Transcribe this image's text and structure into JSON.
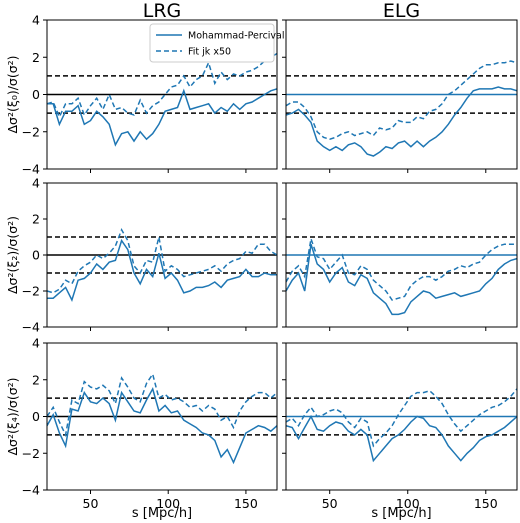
{
  "colors": {
    "series": "#1f77b4",
    "ref": "#000000"
  },
  "legend": {
    "entries": [
      "Mohammad-Percival",
      "Fit jk x50"
    ],
    "placement": "top-right"
  },
  "chart_data": [
    {
      "type": "line",
      "panel": "LRG-xi0",
      "title": "LRG",
      "xlabel": "",
      "ylabel": "Δσ²(ξ₀)/σ(σ²)",
      "xlim": [
        22,
        170
      ],
      "ylim": [
        -4,
        4
      ],
      "yticks": [
        -4,
        -2,
        0,
        2,
        4
      ],
      "xticks": [
        50,
        100,
        150
      ],
      "hlines": [
        {
          "y": 0,
          "style": "solid",
          "color": "#000000"
        },
        {
          "y": 1,
          "style": "dashed"
        },
        {
          "y": -1,
          "style": "dashed"
        }
      ],
      "x": [
        22,
        26,
        30,
        34,
        38,
        42,
        46,
        50,
        54,
        58,
        62,
        66,
        70,
        74,
        78,
        82,
        86,
        90,
        94,
        98,
        102,
        106,
        110,
        114,
        118,
        122,
        126,
        130,
        134,
        138,
        142,
        146,
        150,
        154,
        158,
        162,
        166,
        170
      ],
      "series": [
        {
          "name": "Mohammad-Percival",
          "style": "solid",
          "values": [
            -0.5,
            -0.5,
            -1.6,
            -0.9,
            -0.9,
            -0.6,
            -1.6,
            -1.4,
            -0.9,
            -1.2,
            -1.6,
            -2.7,
            -2.1,
            -2.0,
            -2.5,
            -2.0,
            -2.4,
            -2.1,
            -1.6,
            -0.9,
            -0.8,
            -0.7,
            0.2,
            -0.8,
            -0.7,
            -0.6,
            -0.5,
            -1.0,
            -0.7,
            -0.9,
            -0.5,
            -0.8,
            -0.5,
            -0.4,
            -0.2,
            0.0,
            0.2,
            0.3
          ]
        },
        {
          "name": "Fit jk x50",
          "style": "dashed",
          "values": [
            -0.5,
            -0.4,
            -1.2,
            -0.5,
            -0.5,
            -0.2,
            -1.1,
            -0.6,
            -0.2,
            -0.8,
            0.0,
            -0.8,
            -0.7,
            -1.0,
            -1.1,
            -0.3,
            -1.0,
            -0.6,
            -0.4,
            0.0,
            0.4,
            0.5,
            1.0,
            0.4,
            0.8,
            1.0,
            1.7,
            0.6,
            1.2,
            0.8,
            1.1,
            1.0,
            1.2,
            1.3,
            1.5,
            1.8,
            2.0,
            2.2
          ]
        }
      ]
    },
    {
      "type": "line",
      "panel": "ELG-xi0",
      "title": "ELG",
      "xlabel": "",
      "ylabel": "",
      "xlim": [
        22,
        170
      ],
      "ylim": [
        -4,
        4
      ],
      "yticks": [
        -4,
        -2,
        0,
        2,
        4
      ],
      "xticks": [
        50,
        100,
        150
      ],
      "hlines": [
        {
          "y": 0,
          "style": "solid",
          "color": "#1f77b4"
        },
        {
          "y": 1,
          "style": "dashed"
        },
        {
          "y": -1,
          "style": "dashed"
        }
      ],
      "x": [
        22,
        26,
        30,
        34,
        38,
        42,
        46,
        50,
        54,
        58,
        62,
        66,
        70,
        74,
        78,
        82,
        86,
        90,
        94,
        98,
        102,
        106,
        110,
        114,
        118,
        122,
        126,
        130,
        134,
        138,
        142,
        146,
        150,
        154,
        158,
        162,
        166,
        170
      ],
      "series": [
        {
          "name": "Mohammad-Percival",
          "style": "solid",
          "values": [
            -1.1,
            -1.0,
            -0.8,
            -1.1,
            -1.5,
            -2.5,
            -2.8,
            -3.0,
            -2.8,
            -3.0,
            -2.7,
            -2.6,
            -2.8,
            -3.2,
            -3.3,
            -3.1,
            -2.8,
            -2.9,
            -2.6,
            -2.5,
            -2.8,
            -2.5,
            -2.8,
            -2.5,
            -2.3,
            -2.0,
            -1.6,
            -1.1,
            -0.7,
            -0.2,
            0.2,
            0.3,
            0.3,
            0.3,
            0.4,
            0.3,
            0.3,
            0.2
          ]
        },
        {
          "name": "Fit jk x50",
          "style": "dashed",
          "values": [
            -0.6,
            -0.4,
            -0.4,
            -0.7,
            -1.2,
            -2.0,
            -2.3,
            -2.4,
            -2.3,
            -2.1,
            -2.0,
            -2.2,
            -2.1,
            -2.0,
            -2.2,
            -1.8,
            -1.9,
            -1.8,
            -1.4,
            -1.5,
            -1.5,
            -1.2,
            -1.3,
            -0.9,
            -0.8,
            -0.5,
            0.0,
            0.2,
            0.5,
            0.8,
            1.1,
            1.4,
            1.6,
            1.6,
            1.7,
            1.7,
            1.8,
            1.7
          ]
        }
      ]
    },
    {
      "type": "line",
      "panel": "LRG-xi2",
      "title": "",
      "xlabel": "",
      "ylabel": "Δσ²(ξ₂)/σ(σ²)",
      "xlim": [
        22,
        170
      ],
      "ylim": [
        -4,
        4
      ],
      "yticks": [
        -4,
        -2,
        0,
        2,
        4
      ],
      "xticks": [
        50,
        100,
        150
      ],
      "hlines": [
        {
          "y": 0,
          "style": "solid",
          "color": "#000000"
        },
        {
          "y": 1,
          "style": "dashed"
        },
        {
          "y": -1,
          "style": "dashed"
        }
      ],
      "x": [
        22,
        26,
        30,
        34,
        38,
        42,
        46,
        50,
        54,
        58,
        62,
        66,
        70,
        74,
        78,
        82,
        86,
        90,
        94,
        98,
        102,
        106,
        110,
        114,
        118,
        122,
        126,
        130,
        134,
        138,
        142,
        146,
        150,
        154,
        158,
        162,
        166,
        170
      ],
      "series": [
        {
          "name": "Mohammad-Percival",
          "style": "solid",
          "values": [
            -2.4,
            -2.4,
            -2.1,
            -1.8,
            -2.5,
            -1.4,
            -1.3,
            -1.0,
            -0.5,
            -0.8,
            -0.4,
            -0.3,
            0.8,
            0.3,
            -1.0,
            -1.6,
            -0.8,
            -1.2,
            0.1,
            -1.3,
            -1.0,
            -1.4,
            -2.1,
            -2.0,
            -1.8,
            -1.8,
            -1.7,
            -1.5,
            -1.8,
            -1.4,
            -1.3,
            -1.2,
            -0.8,
            -1.2,
            -1.2,
            -1.0,
            -1.1,
            -1.1
          ]
        },
        {
          "name": "Fit jk x50",
          "style": "dashed",
          "values": [
            -2.0,
            -2.1,
            -1.9,
            -1.4,
            -1.6,
            -0.9,
            -0.6,
            -0.4,
            0.0,
            -0.2,
            0.1,
            0.5,
            1.4,
            0.8,
            -0.6,
            -1.0,
            -0.3,
            -0.4,
            1.0,
            -0.9,
            -0.6,
            -0.8,
            -1.2,
            -1.1,
            -1.0,
            -0.9,
            -0.8,
            -0.6,
            -0.9,
            -0.5,
            -0.3,
            -0.2,
            0.2,
            0.1,
            0.6,
            0.6,
            0.2,
            0.0
          ]
        }
      ]
    },
    {
      "type": "line",
      "panel": "ELG-xi2",
      "title": "",
      "xlabel": "",
      "ylabel": "",
      "xlim": [
        22,
        170
      ],
      "ylim": [
        -4,
        4
      ],
      "yticks": [
        -4,
        -2,
        0,
        2,
        4
      ],
      "xticks": [
        50,
        100,
        150
      ],
      "hlines": [
        {
          "y": 0,
          "style": "solid",
          "color": "#1f77b4"
        },
        {
          "y": 1,
          "style": "dashed"
        },
        {
          "y": -1,
          "style": "dashed"
        }
      ],
      "x": [
        22,
        26,
        30,
        34,
        38,
        42,
        46,
        50,
        54,
        58,
        62,
        66,
        70,
        74,
        78,
        82,
        86,
        90,
        94,
        98,
        102,
        106,
        110,
        114,
        118,
        122,
        126,
        130,
        134,
        138,
        142,
        146,
        150,
        154,
        158,
        162,
        166,
        170
      ],
      "series": [
        {
          "name": "Mohammad-Percival",
          "style": "solid",
          "values": [
            -2.0,
            -1.4,
            -1.0,
            -2.0,
            0.6,
            -0.5,
            -0.8,
            -1.5,
            -1.0,
            -0.7,
            -1.5,
            -1.7,
            -1.1,
            -1.3,
            -2.1,
            -2.4,
            -2.7,
            -3.3,
            -3.3,
            -3.2,
            -2.6,
            -2.3,
            -2.0,
            -2.1,
            -2.4,
            -2.3,
            -2.2,
            -2.1,
            -2.3,
            -2.2,
            -2.1,
            -2.0,
            -1.6,
            -1.3,
            -0.8,
            -0.5,
            -0.3,
            -0.2
          ]
        },
        {
          "name": "Fit jk x50",
          "style": "dashed",
          "values": [
            -1.5,
            -0.9,
            -0.6,
            -1.2,
            0.9,
            -0.1,
            -0.2,
            -0.8,
            -0.4,
            0.0,
            -1.0,
            -1.1,
            -0.6,
            -0.8,
            -1.4,
            -1.7,
            -2.0,
            -2.5,
            -2.4,
            -2.3,
            -1.7,
            -1.4,
            -1.2,
            -1.2,
            -1.4,
            -1.2,
            -0.9,
            -0.8,
            -0.6,
            -0.7,
            -0.5,
            -0.4,
            0.0,
            0.3,
            0.5,
            0.6,
            0.6,
            0.6
          ]
        }
      ]
    },
    {
      "type": "line",
      "panel": "LRG-xi4",
      "title": "",
      "xlabel": "s [Mpc/h]",
      "ylabel": "Δσ²(ξ₄)/σ(σ²)",
      "xlim": [
        22,
        170
      ],
      "ylim": [
        -4,
        4
      ],
      "yticks": [
        -4,
        -2,
        0,
        2,
        4
      ],
      "xticks": [
        50,
        100,
        150
      ],
      "hlines": [
        {
          "y": 0,
          "style": "solid",
          "color": "#000000"
        },
        {
          "y": 1,
          "style": "dashed"
        },
        {
          "y": -1,
          "style": "dashed"
        }
      ],
      "x": [
        22,
        26,
        30,
        34,
        38,
        42,
        46,
        50,
        54,
        58,
        62,
        66,
        70,
        74,
        78,
        82,
        86,
        90,
        94,
        98,
        102,
        106,
        110,
        114,
        118,
        122,
        126,
        130,
        134,
        138,
        142,
        146,
        150,
        154,
        158,
        162,
        166,
        170
      ],
      "series": [
        {
          "name": "Mohammad-Percival",
          "style": "solid",
          "values": [
            -0.5,
            0.1,
            -0.9,
            -1.6,
            0.4,
            0.3,
            1.3,
            0.8,
            0.7,
            1.0,
            0.7,
            -0.2,
            1.3,
            0.8,
            0.3,
            0.2,
            0.9,
            1.5,
            0.3,
            0.6,
            0.2,
            0.3,
            -0.2,
            -0.4,
            -0.6,
            -0.9,
            -1.0,
            -1.3,
            -2.2,
            -1.8,
            -2.5,
            -1.7,
            -0.9,
            -0.7,
            -0.5,
            -0.6,
            -0.8,
            -0.5
          ]
        },
        {
          "name": "Fit jk x50",
          "style": "dashed",
          "values": [
            0.0,
            0.5,
            -0.3,
            -1.0,
            0.9,
            0.7,
            1.9,
            1.6,
            1.5,
            1.7,
            1.4,
            0.7,
            2.1,
            1.6,
            1.0,
            0.8,
            1.8,
            2.3,
            1.0,
            1.2,
            0.9,
            1.0,
            0.8,
            0.5,
            0.6,
            0.3,
            0.6,
            0.4,
            -0.2,
            0.0,
            -0.6,
            0.3,
            0.8,
            1.1,
            1.3,
            1.3,
            1.0,
            1.3
          ]
        }
      ]
    },
    {
      "type": "line",
      "panel": "ELG-xi4",
      "title": "",
      "xlabel": "s [Mpc/h]",
      "ylabel": "",
      "xlim": [
        22,
        170
      ],
      "ylim": [
        -4,
        4
      ],
      "yticks": [
        -4,
        -2,
        0,
        2,
        4
      ],
      "xticks": [
        50,
        100,
        150
      ],
      "hlines": [
        {
          "y": 0,
          "style": "solid",
          "color": "#1f77b4"
        },
        {
          "y": 1,
          "style": "dashed"
        },
        {
          "y": -1,
          "style": "dashed"
        }
      ],
      "x": [
        22,
        26,
        30,
        34,
        38,
        42,
        46,
        50,
        54,
        58,
        62,
        66,
        70,
        74,
        78,
        82,
        86,
        90,
        94,
        98,
        102,
        106,
        110,
        114,
        118,
        122,
        126,
        130,
        134,
        138,
        142,
        146,
        150,
        154,
        158,
        162,
        166,
        170
      ],
      "series": [
        {
          "name": "Mohammad-Percival",
          "style": "solid",
          "values": [
            -0.5,
            -0.6,
            -1.2,
            -0.6,
            0.0,
            -0.7,
            -0.8,
            -0.5,
            -0.3,
            -0.4,
            -0.8,
            -1.0,
            -0.7,
            -1.0,
            -2.4,
            -2.0,
            -1.6,
            -1.2,
            -1.0,
            -0.7,
            -0.3,
            0.0,
            -0.1,
            -0.5,
            -0.6,
            -1.0,
            -1.6,
            -2.0,
            -2.4,
            -2.0,
            -1.7,
            -1.3,
            -1.1,
            -1.0,
            -0.8,
            -0.6,
            -0.3,
            0.0
          ]
        },
        {
          "name": "Fit jk x50",
          "style": "dashed",
          "values": [
            -0.3,
            -0.1,
            -0.5,
            0.1,
            0.5,
            0.0,
            0.1,
            0.3,
            0.4,
            0.2,
            -0.3,
            -0.6,
            -0.1,
            -0.3,
            -1.6,
            -1.2,
            -0.9,
            -0.5,
            0.1,
            0.6,
            1.1,
            1.3,
            1.3,
            1.4,
            1.1,
            0.7,
            0.1,
            -0.4,
            -0.8,
            -0.5,
            -0.2,
            0.1,
            0.3,
            0.5,
            0.6,
            0.8,
            1.1,
            1.5
          ]
        }
      ]
    }
  ]
}
